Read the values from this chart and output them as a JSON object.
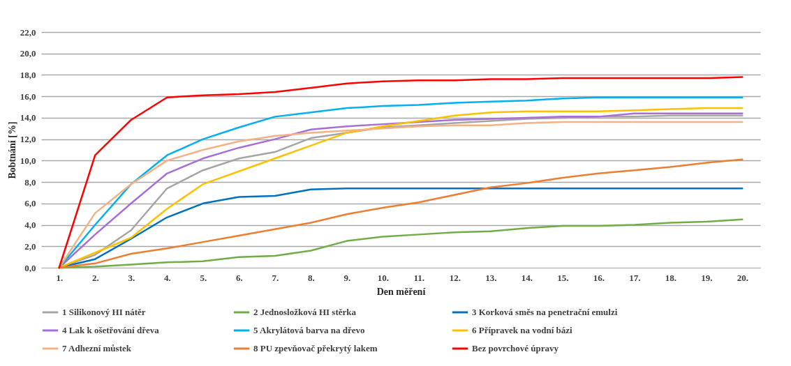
{
  "chart_data": {
    "type": "line",
    "xlabel": "Den měření",
    "ylabel": "Bobtnání [%]",
    "categories": [
      "1.",
      "2.",
      "3.",
      "4.",
      "5.",
      "6.",
      "7.",
      "8.",
      "9.",
      "10.",
      "11.",
      "12.",
      "13.",
      "14.",
      "15.",
      "16.",
      "17.",
      "18.",
      "19.",
      "20."
    ],
    "ylim": [
      0,
      22
    ],
    "yticks": [
      {
        "value": 0,
        "label": "0,0"
      },
      {
        "value": 2,
        "label": "2,0"
      },
      {
        "value": 4,
        "label": "4,0"
      },
      {
        "value": 6,
        "label": "6,0"
      },
      {
        "value": 8,
        "label": "8,0"
      },
      {
        "value": 10,
        "label": "10,0"
      },
      {
        "value": 12,
        "label": "12,0"
      },
      {
        "value": 14,
        "label": "14,0"
      },
      {
        "value": 16,
        "label": "16,0"
      },
      {
        "value": 18,
        "label": "18,0"
      },
      {
        "value": 20,
        "label": "20,0"
      },
      {
        "value": 22,
        "label": "22,0"
      }
    ],
    "grid": "y",
    "legend": "bottom",
    "marker": "none",
    "line_style": "solid",
    "series": [
      {
        "name": "1 Silikonový HI nátěr",
        "color": "#a5a5a5",
        "values": [
          0,
          1.2,
          3.5,
          7.4,
          9.1,
          10.2,
          10.8,
          12.1,
          12.6,
          13.1,
          13.3,
          13.5,
          13.7,
          13.9,
          14.0,
          14.1,
          14.1,
          14.2,
          14.2,
          14.2
        ]
      },
      {
        "name": "2 Jednosložková HI stěrka",
        "color": "#70ad47",
        "values": [
          0,
          0.1,
          0.3,
          0.5,
          0.6,
          1.0,
          1.1,
          1.6,
          2.5,
          2.9,
          3.1,
          3.3,
          3.4,
          3.7,
          3.9,
          3.9,
          4.0,
          4.2,
          4.3,
          4.5
        ]
      },
      {
        "name": "3 Korková směs na penetrační emulzi",
        "color": "#0070c0",
        "values": [
          0,
          0.8,
          2.7,
          4.7,
          6.0,
          6.6,
          6.7,
          7.3,
          7.4,
          7.4,
          7.4,
          7.4,
          7.4,
          7.4,
          7.4,
          7.4,
          7.4,
          7.4,
          7.4,
          7.4
        ]
      },
      {
        "name": "4 Lak k ošetřování dřeva",
        "color": "#a66fd8",
        "values": [
          0,
          3.1,
          6.0,
          8.8,
          10.2,
          11.2,
          12.0,
          12.9,
          13.2,
          13.4,
          13.6,
          13.8,
          13.9,
          14.0,
          14.1,
          14.1,
          14.4,
          14.4,
          14.4,
          14.4
        ]
      },
      {
        "name": "5 Akrylátová barva na dřevo",
        "color": "#00b0f0",
        "values": [
          0,
          4.0,
          7.8,
          10.5,
          12.0,
          13.1,
          14.1,
          14.5,
          14.9,
          15.1,
          15.2,
          15.4,
          15.5,
          15.6,
          15.8,
          15.9,
          15.9,
          15.9,
          15.9,
          15.9
        ]
      },
      {
        "name": "6 Přípravek na vodní bázi",
        "color": "#ffc000",
        "values": [
          0,
          1.4,
          2.8,
          5.5,
          7.8,
          9.0,
          10.2,
          11.4,
          12.6,
          13.2,
          13.7,
          14.2,
          14.5,
          14.6,
          14.6,
          14.6,
          14.7,
          14.8,
          14.9,
          14.9
        ]
      },
      {
        "name": "7 Adhezní můstek",
        "color": "#f4b183",
        "values": [
          0,
          5.1,
          7.8,
          10.0,
          11.0,
          11.8,
          12.3,
          12.6,
          12.8,
          13.0,
          13.2,
          13.3,
          13.3,
          13.5,
          13.6,
          13.6,
          13.6,
          13.6,
          13.6,
          13.6
        ]
      },
      {
        "name": "8 PU zpevňovač překrytý lakem",
        "color": "#ed7d31",
        "values": [
          0,
          0.4,
          1.3,
          1.8,
          2.4,
          3.0,
          3.6,
          4.2,
          5.0,
          5.6,
          6.1,
          6.8,
          7.5,
          7.9,
          8.4,
          8.8,
          9.1,
          9.4,
          9.8,
          10.1
        ]
      },
      {
        "name": "Bez povrchové úpravy",
        "color": "#ff0000",
        "values": [
          0,
          10.5,
          13.8,
          15.9,
          16.1,
          16.2,
          16.4,
          16.8,
          17.2,
          17.4,
          17.5,
          17.5,
          17.6,
          17.6,
          17.7,
          17.7,
          17.7,
          17.7,
          17.7,
          17.8
        ]
      }
    ]
  }
}
